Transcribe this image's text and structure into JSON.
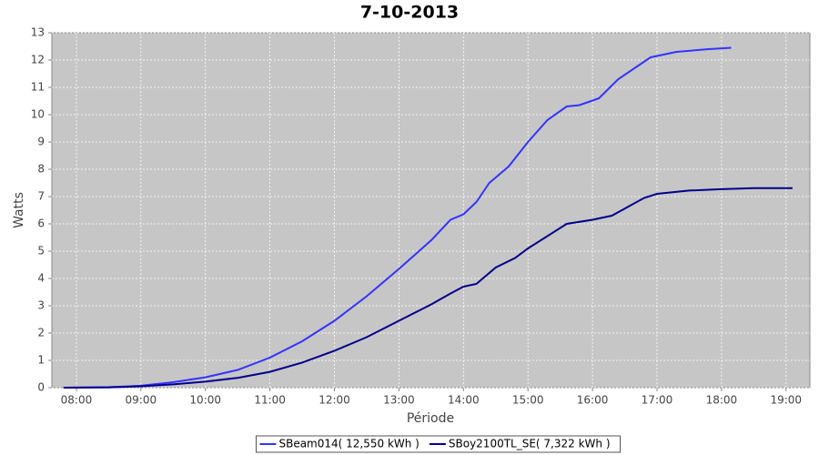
{
  "chart_data": {
    "type": "line",
    "title": "7-10-2013",
    "x_label": "Période",
    "y_label": "Watts",
    "xlim": [
      7.62,
      19.37
    ],
    "xticks": [
      {
        "value": 8,
        "label": "08:00"
      },
      {
        "value": 9,
        "label": "09:00"
      },
      {
        "value": 10,
        "label": "10:00"
      },
      {
        "value": 11,
        "label": "11:00"
      },
      {
        "value": 12,
        "label": "12:00"
      },
      {
        "value": 13,
        "label": "13:00"
      },
      {
        "value": 14,
        "label": "14:00"
      },
      {
        "value": 15,
        "label": "15:00"
      },
      {
        "value": 16,
        "label": "16:00"
      },
      {
        "value": 17,
        "label": "17:00"
      },
      {
        "value": 18,
        "label": "18:00"
      },
      {
        "value": 19,
        "label": "19:00"
      }
    ],
    "ylim": [
      0,
      13
    ],
    "yticks": [
      0,
      1,
      2,
      3,
      4,
      5,
      6,
      7,
      8,
      9,
      10,
      11,
      12,
      13
    ],
    "grid": true,
    "legend": "bottom",
    "series": [
      {
        "name": "SBeam014( 12,550 kWh )",
        "color": "#3333ff",
        "x": [
          7.8,
          8.5,
          9,
          9.5,
          10,
          10.5,
          11,
          11.5,
          12,
          12.5,
          13,
          13.5,
          13.8,
          14,
          14.2,
          14.4,
          14.7,
          15,
          15.3,
          15.6,
          15.8,
          16.1,
          16.4,
          16.9,
          17.3,
          17.8,
          18.15
        ],
        "values": [
          0,
          0.02,
          0.07,
          0.2,
          0.38,
          0.65,
          1.1,
          1.7,
          2.45,
          3.35,
          4.35,
          5.4,
          6.15,
          6.35,
          6.8,
          7.5,
          8.1,
          9.0,
          9.8,
          10.3,
          10.35,
          10.6,
          11.3,
          12.1,
          12.3,
          12.4,
          12.45
        ]
      },
      {
        "name": "SBoy2100TL_SE( 7,322 kWh )",
        "color": "#00008b",
        "x": [
          7.8,
          8.5,
          9,
          9.5,
          10,
          10.5,
          11,
          11.5,
          12,
          12.5,
          13,
          13.5,
          13.8,
          14,
          14.2,
          14.5,
          14.8,
          15,
          15.6,
          16,
          16.3,
          16.8,
          17,
          17.5,
          18,
          18.5,
          19.1
        ],
        "values": [
          0,
          0.01,
          0.05,
          0.12,
          0.22,
          0.36,
          0.58,
          0.92,
          1.35,
          1.85,
          2.45,
          3.05,
          3.45,
          3.7,
          3.8,
          4.4,
          4.75,
          5.1,
          6.0,
          6.15,
          6.3,
          6.95,
          7.1,
          7.22,
          7.27,
          7.31,
          7.31
        ]
      }
    ]
  }
}
